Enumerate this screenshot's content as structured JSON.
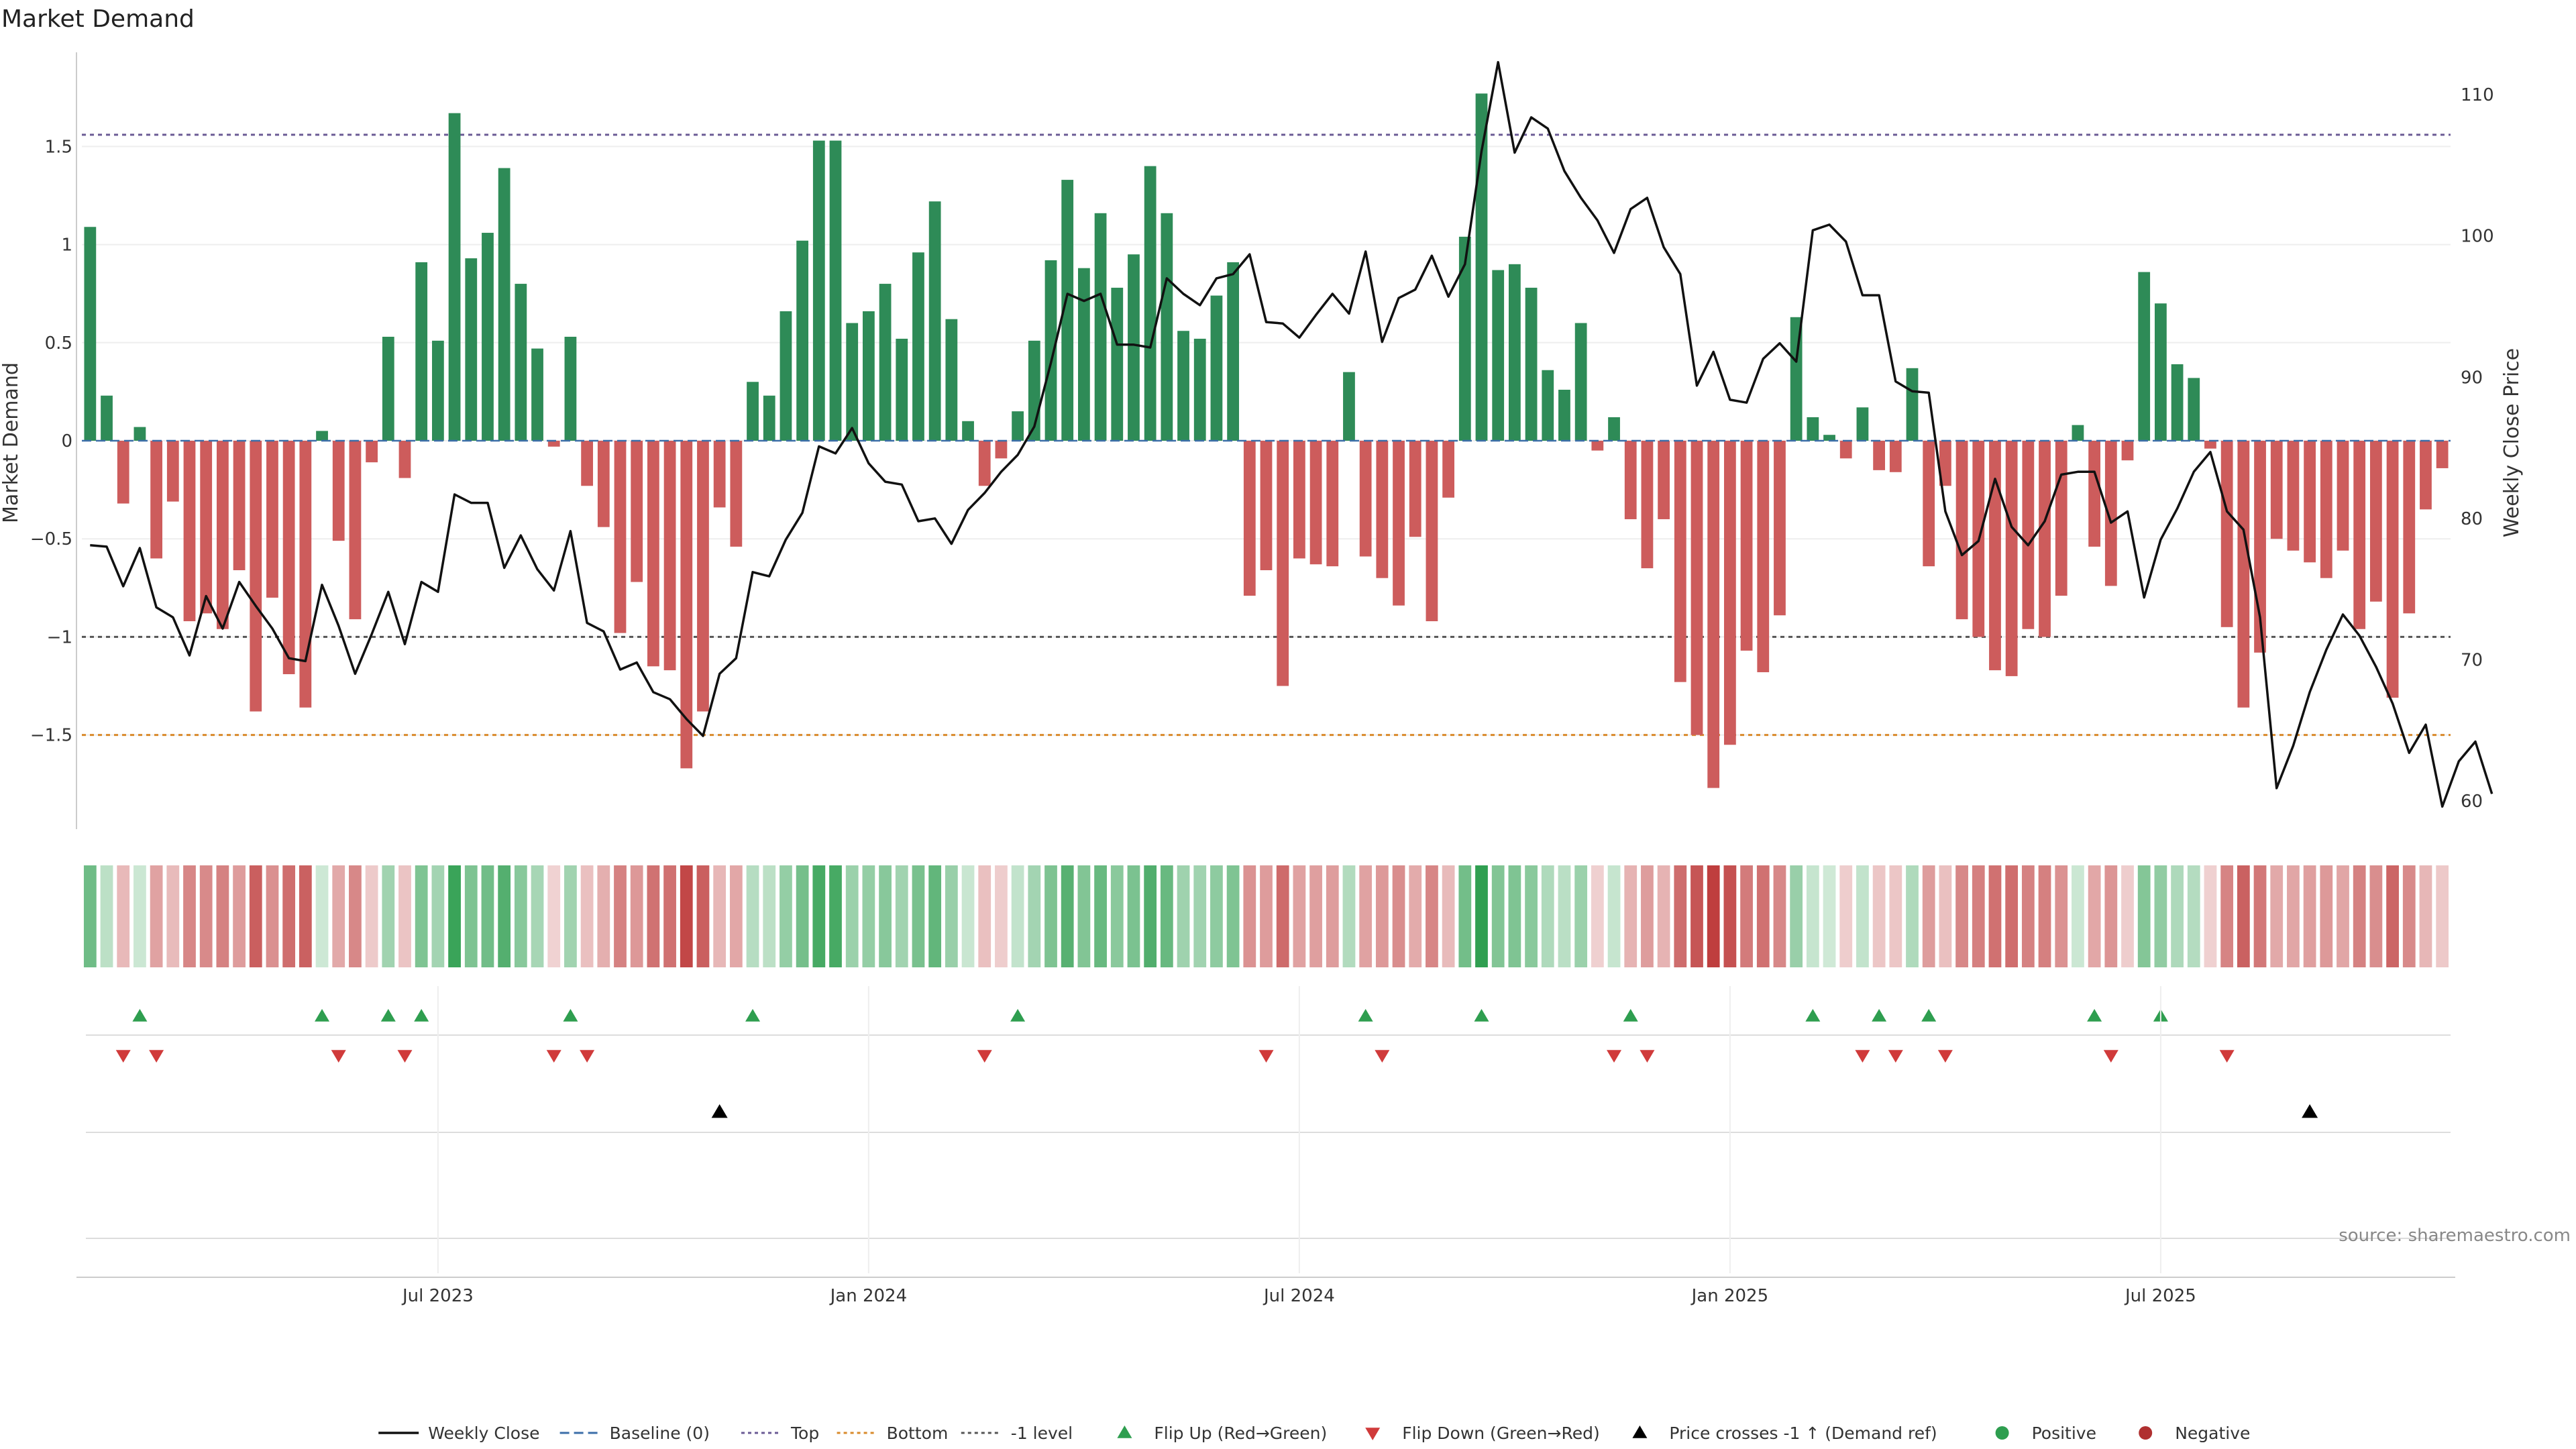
{
  "chart_data": {
    "type": "bar",
    "title": "Market Demand",
    "ylabel": "Market Demand",
    "y2label": "Weekly Close Price",
    "ylim": [
      -1.98,
      1.98
    ],
    "y2lim": [
      58,
      113
    ],
    "yticks": [
      {
        "v": 1.5,
        "label": "1.5"
      },
      {
        "v": 1,
        "label": "1"
      },
      {
        "v": 0.5,
        "label": "0.5"
      },
      {
        "v": 0,
        "label": "0"
      },
      {
        "v": -0.5,
        "label": "−0.5"
      },
      {
        "v": -1,
        "label": "−1"
      },
      {
        "v": -1.5,
        "label": "−1.5"
      }
    ],
    "y2ticks": [
      {
        "v": 110,
        "label": "110"
      },
      {
        "v": 100,
        "label": "100"
      },
      {
        "v": 90,
        "label": "90"
      },
      {
        "v": 80,
        "label": "80"
      },
      {
        "v": 70,
        "label": "70"
      },
      {
        "v": 60,
        "label": "60"
      }
    ],
    "reference_lines": {
      "top": 1.56,
      "bottom": -1.5,
      "minus_one": -1.0
    },
    "x_ticks": [
      {
        "week": 21,
        "label": "Jul 2023"
      },
      {
        "week": 47,
        "label": "Jan 2024"
      },
      {
        "week": 73,
        "label": "Jul 2024"
      },
      {
        "week": 99,
        "label": "Jan 2025"
      },
      {
        "week": 125,
        "label": "Jul 2025"
      }
    ],
    "demand": [
      1.09,
      0.23,
      -0.32,
      0.07,
      -0.6,
      -0.31,
      -0.92,
      -0.88,
      -0.96,
      -0.66,
      -1.38,
      -0.8,
      -1.19,
      -1.36,
      0.05,
      -0.51,
      -0.91,
      -0.11,
      0.53,
      -0.19,
      0.91,
      0.51,
      1.67,
      0.93,
      1.06,
      1.39,
      0.8,
      0.47,
      -0.03,
      0.53,
      -0.23,
      -0.44,
      -0.98,
      -0.72,
      -1.15,
      -1.17,
      -1.67,
      -1.38,
      -0.34,
      -0.54,
      0.3,
      0.23,
      0.66,
      1.02,
      1.53,
      1.53,
      0.6,
      0.66,
      0.8,
      0.52,
      0.96,
      1.22,
      0.62,
      0.1,
      -0.23,
      -0.09,
      0.15,
      0.51,
      0.92,
      1.33,
      0.88,
      1.16,
      0.78,
      0.95,
      1.4,
      1.16,
      0.56,
      0.52,
      0.74,
      0.91,
      -0.79,
      -0.66,
      -1.25,
      -0.6,
      -0.63,
      -0.64,
      0.35,
      -0.59,
      -0.7,
      -0.84,
      -0.49,
      -0.92,
      -0.29,
      1.04,
      1.77,
      0.87,
      0.9,
      0.78,
      0.36,
      0.26,
      0.6,
      -0.05,
      0.12,
      -0.4,
      -0.65,
      -0.4,
      -1.23,
      -1.5,
      -1.77,
      -1.55,
      -1.07,
      -1.18,
      -0.89,
      0.63,
      0.12,
      0.03,
      -0.09,
      0.17,
      -0.15,
      -0.16,
      0.37,
      -0.64,
      -0.23,
      -0.91,
      -1.0,
      -1.17,
      -1.2,
      -0.96,
      -1.0,
      -0.79,
      0.08,
      -0.54,
      -0.74,
      -0.1,
      0.86,
      0.7,
      0.39,
      0.32,
      -0.04,
      -0.95,
      -1.36,
      -1.08,
      -0.5,
      -0.56,
      -0.62,
      -0.7,
      -0.56,
      -0.96,
      -0.82,
      -1.31,
      -0.88,
      -0.35,
      -0.14
    ],
    "weekly_close": [
      78.1,
      78.0,
      75.2,
      77.9,
      73.7,
      73.0,
      70.3,
      74.5,
      72.2,
      75.5,
      73.8,
      72.2,
      70.1,
      69.9,
      75.3,
      72.4,
      69.0,
      71.8,
      74.8,
      71.1,
      75.5,
      74.8,
      81.7,
      81.1,
      81.1,
      76.5,
      78.8,
      76.4,
      74.9,
      79.1,
      72.6,
      72.0,
      69.3,
      69.8,
      67.7,
      67.2,
      65.8,
      64.6,
      69.0,
      70.1,
      76.2,
      75.9,
      78.5,
      80.4,
      85.1,
      84.6,
      86.4,
      83.9,
      82.6,
      82.4,
      79.8,
      80.0,
      78.2,
      80.6,
      81.8,
      83.3,
      84.5,
      86.5,
      91.0,
      95.9,
      95.4,
      95.9,
      92.3,
      92.3,
      92.1,
      97.0,
      95.9,
      95.1,
      97.0,
      97.3,
      98.7,
      93.9,
      93.8,
      92.8,
      94.4,
      95.9,
      94.5,
      98.9,
      92.5,
      95.6,
      96.2,
      98.6,
      95.7,
      98.0,
      106.0,
      112.3,
      105.9,
      108.4,
      107.6,
      104.6,
      102.7,
      101.1,
      98.8,
      101.9,
      102.7,
      99.2,
      97.3,
      89.4,
      91.8,
      88.4,
      88.2,
      91.3,
      92.4,
      91.1,
      100.4,
      100.8,
      99.6,
      95.8,
      95.8,
      89.7,
      89.0,
      88.9,
      80.5,
      77.4,
      78.4,
      82.8,
      79.4,
      78.1,
      79.8,
      83.1,
      83.3,
      83.3,
      79.7,
      80.5,
      74.4,
      78.5,
      80.7,
      83.3,
      84.7,
      80.5,
      79.2,
      73.0,
      60.9,
      63.9,
      67.7,
      70.7,
      73.2,
      71.7,
      69.5,
      66.9,
      63.4,
      65.4,
      59.6,
      62.8,
      64.2,
      60.5
    ],
    "flip_up_weeks": [
      3,
      14,
      18,
      20,
      29,
      40,
      56,
      77,
      84,
      93,
      104,
      108,
      111,
      121,
      125
    ],
    "flip_down_weeks": [
      2,
      4,
      15,
      19,
      28,
      30,
      54,
      71,
      78,
      92,
      94,
      107,
      109,
      112,
      122,
      129
    ],
    "price_cross_weeks": [
      38,
      134
    ],
    "legend": [
      {
        "kind": "line",
        "label": "Weekly Close",
        "color": "#111111"
      },
      {
        "kind": "dash",
        "label": "Baseline (0)",
        "color": "#3b6ea8"
      },
      {
        "kind": "dot",
        "label": "Top",
        "color": "#6b5b95"
      },
      {
        "kind": "dot",
        "label": "Bottom",
        "color": "#d98a2b"
      },
      {
        "kind": "dot",
        "label": "-1 level",
        "color": "#555555"
      },
      {
        "kind": "tri-up",
        "label": "Flip Up (Red→Green)",
        "color": "#2e9e4f"
      },
      {
        "kind": "tri-down",
        "label": "Flip Down (Green→Red)",
        "color": "#d03a3a"
      },
      {
        "kind": "tri-up",
        "label": "Price crosses -1 ↑ (Demand ref)",
        "color": "#000000"
      },
      {
        "kind": "circle",
        "label": "Positive",
        "color": "#2e9e4f"
      },
      {
        "kind": "circle",
        "label": "Negative",
        "color": "#b03030"
      }
    ],
    "source": "source: sharemaestro.com"
  },
  "colors": {
    "positive_bar": "#2e8b57",
    "negative_bar": "#cd5c5c",
    "price_line": "#111111",
    "flip_up": "#2e9e4f",
    "flip_down": "#d03a3a",
    "price_cross": "#000000",
    "grid": "#eeeeee",
    "axis": "#cccccc"
  }
}
